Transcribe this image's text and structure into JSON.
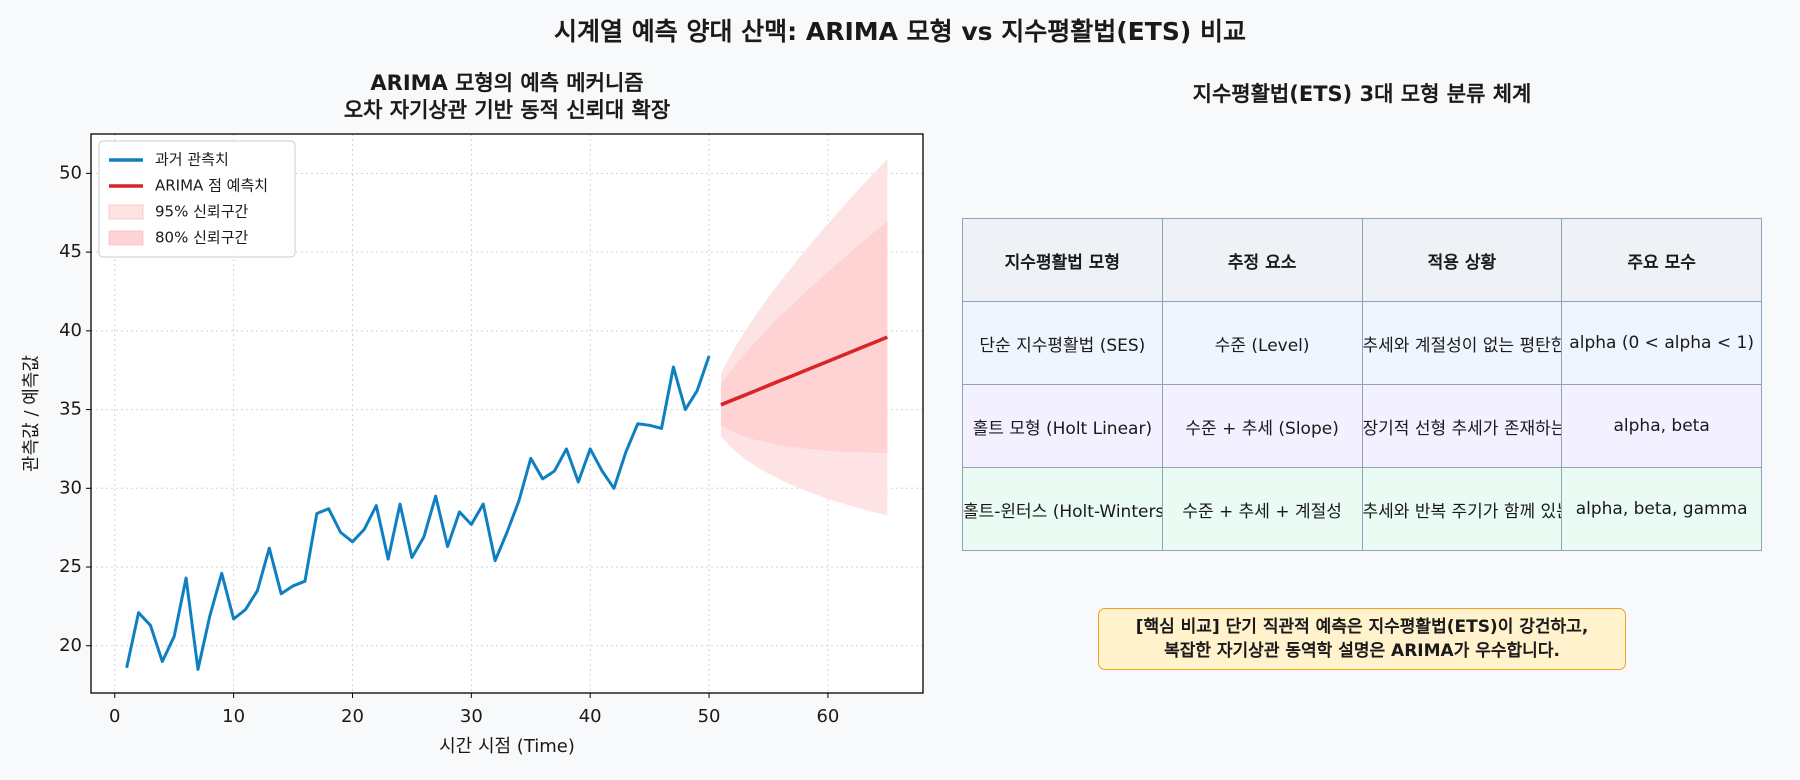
{
  "title": "시계열 예측 양대 산맥: ARIMA 모형 vs 지수평활법(ETS) 비교",
  "chart_data": {
    "type": "line",
    "title_lines": [
      "ARIMA 모형의 예측 메커니즘",
      "오차 자기상관 기반 동적 신뢰대 확장"
    ],
    "x_label": "시간 시점 (Time)",
    "y_label": "관측값 / 예측값",
    "xlim": [
      -2,
      68
    ],
    "ylim": [
      17,
      52.5
    ],
    "xticks": [
      0,
      10,
      20,
      30,
      40,
      50,
      60
    ],
    "yticks": [
      20,
      25,
      30,
      35,
      40,
      45,
      50
    ],
    "grid": true,
    "legend": "upper left",
    "series": [
      {
        "name": "과거 관측치",
        "color": "#0e80c2",
        "x": [
          1,
          2,
          3,
          4,
          5,
          6,
          7,
          8,
          9,
          10,
          11,
          12,
          13,
          14,
          15,
          16,
          17,
          18,
          19,
          20,
          21,
          22,
          23,
          24,
          25,
          26,
          27,
          28,
          29,
          30,
          31,
          32,
          33,
          34,
          35,
          36,
          37,
          38,
          39,
          40,
          41,
          42,
          43,
          44,
          45,
          46,
          47,
          48,
          49,
          50
        ],
        "values": [
          18.6,
          22.1,
          21.3,
          19.0,
          20.6,
          24.3,
          18.5,
          21.9,
          24.6,
          21.7,
          22.3,
          23.5,
          26.2,
          23.3,
          23.8,
          24.1,
          28.4,
          28.7,
          27.2,
          26.6,
          27.4,
          28.9,
          25.5,
          29.0,
          25.6,
          26.9,
          29.5,
          26.3,
          28.5,
          27.7,
          29.0,
          25.4,
          27.2,
          29.2,
          31.9,
          30.6,
          31.1,
          32.5,
          30.4,
          32.5,
          31.1,
          30.0,
          32.3,
          34.1,
          34.0,
          33.8,
          37.7,
          35.0,
          36.2,
          38.4
        ]
      },
      {
        "name": "ARIMA 점 예측치",
        "color": "#d62728",
        "x": [
          51,
          52,
          53,
          54,
          55,
          56,
          57,
          58,
          59,
          60,
          61,
          62,
          63,
          64,
          65
        ],
        "values": [
          35.3,
          35.61,
          35.91,
          36.22,
          36.53,
          36.84,
          37.14,
          37.45,
          37.76,
          38.06,
          38.37,
          38.68,
          38.99,
          39.29,
          39.6
        ]
      }
    ],
    "bands": [
      {
        "name": "95% 신뢰구간",
        "color": "#fde3e3",
        "x": [
          51,
          52,
          53,
          54,
          55,
          56,
          57,
          58,
          59,
          60,
          61,
          62,
          63,
          64,
          65
        ],
        "lower": [
          33.3,
          32.49,
          31.87,
          31.36,
          30.93,
          30.54,
          30.2,
          29.88,
          29.6,
          29.33,
          29.09,
          28.87,
          28.66,
          28.46,
          28.28
        ],
        "upper": [
          37.3,
          38.73,
          39.95,
          41.08,
          42.13,
          43.14,
          44.08,
          45.02,
          45.92,
          46.79,
          47.65,
          48.49,
          49.32,
          50.12,
          50.92
        ]
      },
      {
        "name": "80% 신뢰구간",
        "color": "#ffd3d3",
        "x": [
          51,
          52,
          53,
          54,
          55,
          56,
          57,
          58,
          59,
          60,
          61,
          62,
          63,
          64,
          65
        ],
        "lower": [
          34.0,
          33.58,
          33.28,
          33.06,
          32.89,
          32.74,
          32.63,
          32.53,
          32.46,
          32.38,
          32.34,
          32.3,
          32.28,
          32.25,
          32.24
        ],
        "upper": [
          36.6,
          37.64,
          38.54,
          39.38,
          40.17,
          40.94,
          41.65,
          42.37,
          43.06,
          43.74,
          44.4,
          45.06,
          45.7,
          46.33,
          46.96
        ]
      }
    ]
  },
  "table": {
    "title": "지수평활법(ETS) 3대 모형 분류 체계",
    "header": [
      "지수평활법 모형",
      "추정 요소",
      "적용 상황",
      "주요 모수"
    ],
    "rows": [
      [
        "단순 지수평활법 (SES)",
        "수준 (Level)",
        "추세와 계절성이 없는 평탄한 데이터",
        "alpha (0 < alpha < 1)"
      ],
      [
        "홀트 모형 (Holt Linear)",
        "수준 + 추세 (Slope)",
        "장기적 선형 추세가 존재하는 데이터",
        "alpha, beta"
      ],
      [
        "홀트-윈터스 (Holt-Winters)",
        "수준 + 추세 + 계절성",
        "추세와 반복 주기가 함께 있는 데이터",
        "alpha, beta, gamma"
      ]
    ]
  },
  "note": [
    "[핵심 비교] 단기 직관적 예측은 지수평활법(ETS)이 강건하고,",
    "복잡한 자기상관 동역학 설명은 ARIMA가 우수합니다."
  ]
}
